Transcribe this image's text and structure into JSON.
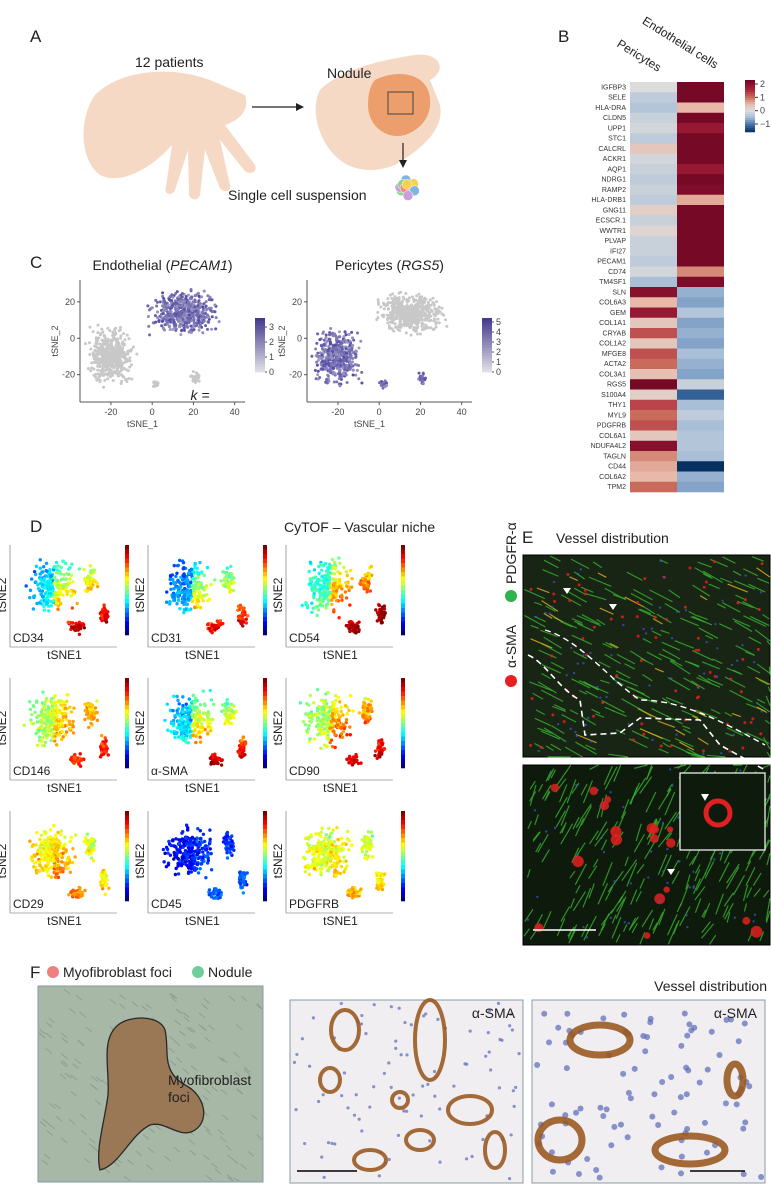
{
  "panel_a": {
    "letter": "A",
    "patients": "12 patients",
    "nodule": "Nodule",
    "suspension": "Single cell suspension"
  },
  "panel_b": {
    "letter": "B",
    "genes": [
      "IGFBP3",
      "SELE",
      "HLA-DRA",
      "CLDN5",
      "UPP1",
      "STC1",
      "CALCRL",
      "ACKR1",
      "AQP1",
      "NDRG1",
      "RAMP2",
      "HLA-DRB1",
      "GNG11",
      "ECSCR.1",
      "WWTR1",
      "PLVAP",
      "IFI27",
      "PECAM1",
      "CD74",
      "TM4SF1",
      "SLN",
      "COL6A3",
      "GEM",
      "COL1A1",
      "CRYAB",
      "COL1A2",
      "MFGE8",
      "ACTA2",
      "COL3A1",
      "RGS5",
      "S100A4",
      "THY1",
      "MYL9",
      "PDGFRB",
      "COL6A1",
      "NDUFA4L2",
      "TAGLN",
      "CD44",
      "COL6A2",
      "TPM2"
    ],
    "series": [
      {
        "name": "Pericytes",
        "values": [
          0,
          -0.3,
          -0.4,
          -0.2,
          -0.1,
          -0.3,
          0.3,
          -0.1,
          -0.2,
          -0.3,
          -0.2,
          -0.3,
          0.2,
          -0.2,
          0.1,
          -0.2,
          -0.2,
          -0.3,
          -0.1,
          -0.5,
          2,
          0.5,
          1.8,
          0.3,
          1.2,
          0.3,
          1.2,
          1,
          0.4,
          2.2,
          0.2,
          1.3,
          1,
          1.2,
          0.3,
          2,
          0.8,
          0.6,
          0.5,
          1
        ]
      },
      {
        "name": "Endothelial cells",
        "values": [
          2.2,
          2.2,
          0.5,
          2.2,
          1.8,
          2.2,
          2.2,
          2.2,
          1.8,
          2.2,
          2.1,
          0.6,
          2.2,
          2.2,
          2.2,
          2.2,
          2.2,
          2.2,
          0.8,
          2.1,
          -0.6,
          -0.7,
          -0.4,
          -0.7,
          -0.6,
          -0.7,
          -0.5,
          -0.6,
          -0.7,
          -0.2,
          -1.2,
          -0.5,
          -0.3,
          -0.5,
          -0.4,
          -0.4,
          -0.5,
          -1.6,
          -0.6,
          -0.7
        ]
      }
    ],
    "colorbar": {
      "lim": [
        -1.6,
        2.3
      ],
      "ticks": [
        2,
        1,
        0,
        {
          "value": -1,
          "label": "−1"
        }
      ]
    }
  },
  "panel_c": {
    "letter": "C",
    "xlabel": "tSNE_1",
    "ylabel": "tSNE_2",
    "xlim": [
      -35,
      45
    ],
    "ylim": [
      -35,
      32
    ],
    "xticks": [
      -20,
      0,
      20,
      40
    ],
    "yticks": [
      20,
      0,
      -20
    ],
    "plots": [
      {
        "title_start": "Endothelial (",
        "gene": "PECAM1",
        "title_end": ")",
        "clim": [
          0,
          3.6
        ],
        "cticks": [
          3,
          2,
          1,
          0
        ],
        "note": "k ="
      },
      {
        "title_start": "Pericytes (",
        "gene": "RGS5",
        "title_end": ")",
        "clim": [
          0,
          5.4
        ],
        "cticks": [
          5,
          4,
          3,
          2,
          1,
          0
        ]
      }
    ]
  },
  "panel_d": {
    "letter": "D",
    "title": "CyTOF – Vascular niche",
    "xlabel": "tSNE1",
    "ylabel": "tSNE2",
    "markers": [
      "CD34",
      "CD31",
      "CD54",
      "CD146",
      "α-SMA",
      "CD90",
      "CD29",
      "CD45",
      "PDGFRB"
    ]
  },
  "panel_e": {
    "letter": "E",
    "title": "Vessel distribution",
    "stains": [
      "PDGFR-α",
      "α-SMA"
    ]
  },
  "panel_f": {
    "letter": "F",
    "legend": [
      "Myofibroblast foci",
      "Nodule"
    ],
    "annotation": [
      "Myofibroblast",
      "foci"
    ],
    "stain_labels": [
      "α-SMA",
      "α-SMA"
    ],
    "title": "Vessel distribution"
  }
}
